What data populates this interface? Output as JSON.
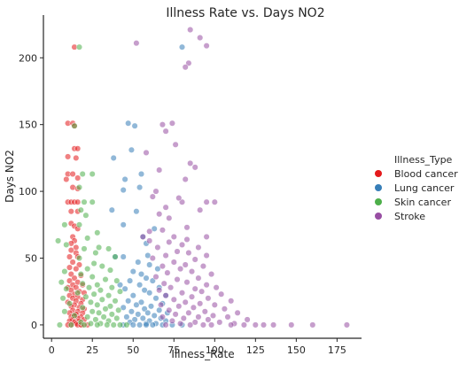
{
  "chart_data": {
    "type": "scatter",
    "title": "Illness Rate vs. Days NO2",
    "xlabel": "Illness_Rate",
    "ylabel": "Days NO2",
    "xlim": [
      -5,
      190
    ],
    "ylim": [
      -10,
      232
    ],
    "xticks": [
      0,
      25,
      50,
      75,
      100,
      125,
      150,
      175
    ],
    "yticks": [
      0,
      50,
      100,
      150,
      200
    ],
    "grid": false,
    "legend": {
      "title": "Illness_Type",
      "placement": "right"
    },
    "colors": {
      "Blood cancer": "#e41a1c",
      "Lung cancer": "#377eb8",
      "Skin cancer": "#4daf4a",
      "Stroke": "#984ea3"
    },
    "series": [
      {
        "name": "Blood cancer",
        "points": [
          [
            14,
            208
          ],
          [
            10,
            151
          ],
          [
            13,
            151
          ],
          [
            14,
            149
          ],
          [
            14,
            132
          ],
          [
            16,
            132
          ],
          [
            10,
            126
          ],
          [
            15,
            125
          ],
          [
            10,
            113
          ],
          [
            13,
            113
          ],
          [
            16,
            110
          ],
          [
            9,
            109
          ],
          [
            13,
            103
          ],
          [
            16,
            102
          ],
          [
            10,
            92
          ],
          [
            12,
            92
          ],
          [
            14,
            92
          ],
          [
            16,
            92
          ],
          [
            12,
            85
          ],
          [
            16,
            85
          ],
          [
            12,
            76
          ],
          [
            14,
            74
          ],
          [
            16,
            72
          ],
          [
            13,
            66
          ],
          [
            14,
            63
          ],
          [
            12,
            61
          ],
          [
            15,
            58
          ],
          [
            12,
            56
          ],
          [
            15,
            54
          ],
          [
            11,
            51
          ],
          [
            16,
            51
          ],
          [
            13,
            47
          ],
          [
            17,
            45
          ],
          [
            11,
            43
          ],
          [
            15,
            42
          ],
          [
            12,
            38
          ],
          [
            18,
            37
          ],
          [
            14,
            35
          ],
          [
            11,
            33
          ],
          [
            16,
            32
          ],
          [
            13,
            30
          ],
          [
            19,
            30
          ],
          [
            10,
            28
          ],
          [
            15,
            28
          ],
          [
            12,
            26
          ],
          [
            17,
            25
          ],
          [
            20,
            24
          ],
          [
            14,
            23
          ],
          [
            11,
            22
          ],
          [
            16,
            21
          ],
          [
            13,
            20
          ],
          [
            19,
            19
          ],
          [
            15,
            18
          ],
          [
            10,
            17
          ],
          [
            18,
            16
          ],
          [
            14,
            15
          ],
          [
            12,
            14
          ],
          [
            17,
            13
          ],
          [
            20,
            12
          ],
          [
            13,
            11
          ],
          [
            16,
            10
          ],
          [
            11,
            9
          ],
          [
            19,
            9
          ],
          [
            15,
            8
          ],
          [
            14,
            7
          ],
          [
            18,
            6
          ],
          [
            12,
            6
          ],
          [
            16,
            5
          ],
          [
            13,
            4
          ],
          [
            20,
            4
          ],
          [
            11,
            3
          ],
          [
            17,
            3
          ],
          [
            14,
            2
          ],
          [
            15,
            1
          ],
          [
            12,
            0
          ],
          [
            16,
            0
          ],
          [
            19,
            0
          ],
          [
            10,
            0
          ],
          [
            22,
            0
          ],
          [
            18,
            0
          ]
        ]
      },
      {
        "name": "Lung cancer",
        "points": [
          [
            80,
            208
          ],
          [
            47,
            151
          ],
          [
            51,
            149
          ],
          [
            38,
            125
          ],
          [
            49,
            131
          ],
          [
            45,
            109
          ],
          [
            55,
            113
          ],
          [
            54,
            103
          ],
          [
            44,
            101
          ],
          [
            37,
            86
          ],
          [
            52,
            85
          ],
          [
            44,
            75
          ],
          [
            63,
            72
          ],
          [
            56,
            66
          ],
          [
            58,
            61
          ],
          [
            44,
            51
          ],
          [
            39,
            51
          ],
          [
            59,
            52
          ],
          [
            53,
            47
          ],
          [
            60,
            45
          ],
          [
            65,
            42
          ],
          [
            50,
            40
          ],
          [
            55,
            38
          ],
          [
            58,
            35
          ],
          [
            48,
            33
          ],
          [
            62,
            33
          ],
          [
            42,
            30
          ],
          [
            54,
            30
          ],
          [
            66,
            28
          ],
          [
            45,
            27
          ],
          [
            57,
            26
          ],
          [
            60,
            24
          ],
          [
            50,
            22
          ],
          [
            70,
            22
          ],
          [
            64,
            20
          ],
          [
            47,
            18
          ],
          [
            55,
            17
          ],
          [
            68,
            16
          ],
          [
            52,
            15
          ],
          [
            61,
            14
          ],
          [
            44,
            13
          ],
          [
            57,
            12
          ],
          [
            66,
            11
          ],
          [
            49,
            10
          ],
          [
            59,
            9
          ],
          [
            71,
            9
          ],
          [
            53,
            8
          ],
          [
            63,
            7
          ],
          [
            46,
            6
          ],
          [
            56,
            5
          ],
          [
            67,
            5
          ],
          [
            51,
            4
          ],
          [
            60,
            3
          ],
          [
            70,
            3
          ],
          [
            48,
            2
          ],
          [
            58,
            1
          ],
          [
            64,
            1
          ],
          [
            54,
            0
          ],
          [
            62,
            0
          ],
          [
            68,
            0
          ],
          [
            44,
            0
          ],
          [
            74,
            0
          ],
          [
            80,
            0
          ],
          [
            50,
            0
          ],
          [
            58,
            0
          ]
        ]
      },
      {
        "name": "Skin cancer",
        "points": [
          [
            17,
            208
          ],
          [
            14,
            149
          ],
          [
            19,
            113
          ],
          [
            25,
            113
          ],
          [
            17,
            103
          ],
          [
            20,
            92
          ],
          [
            25,
            92
          ],
          [
            18,
            86
          ],
          [
            21,
            82
          ],
          [
            17,
            75
          ],
          [
            8,
            75
          ],
          [
            4,
            63
          ],
          [
            22,
            65
          ],
          [
            28,
            69
          ],
          [
            9,
            60
          ],
          [
            20,
            57
          ],
          [
            35,
            57
          ],
          [
            27,
            54
          ],
          [
            29,
            58
          ],
          [
            17,
            50
          ],
          [
            39,
            51
          ],
          [
            26,
            46
          ],
          [
            31,
            44
          ],
          [
            22,
            42
          ],
          [
            36,
            41
          ],
          [
            8,
            40
          ],
          [
            18,
            38
          ],
          [
            25,
            36
          ],
          [
            33,
            34
          ],
          [
            40,
            33
          ],
          [
            6,
            32
          ],
          [
            19,
            31
          ],
          [
            28,
            30
          ],
          [
            23,
            28
          ],
          [
            37,
            28
          ],
          [
            9,
            27
          ],
          [
            30,
            26
          ],
          [
            42,
            25
          ],
          [
            16,
            24
          ],
          [
            26,
            23
          ],
          [
            35,
            22
          ],
          [
            21,
            21
          ],
          [
            7,
            20
          ],
          [
            31,
            19
          ],
          [
            39,
            18
          ],
          [
            24,
            17
          ],
          [
            11,
            16
          ],
          [
            28,
            15
          ],
          [
            36,
            14
          ],
          [
            19,
            13
          ],
          [
            33,
            12
          ],
          [
            41,
            11
          ],
          [
            8,
            10
          ],
          [
            25,
            10
          ],
          [
            29,
            9
          ],
          [
            37,
            8
          ],
          [
            14,
            7
          ],
          [
            22,
            6
          ],
          [
            32,
            6
          ],
          [
            40,
            5
          ],
          [
            27,
            4
          ],
          [
            35,
            3
          ],
          [
            18,
            2
          ],
          [
            24,
            1
          ],
          [
            30,
            1
          ],
          [
            38,
            0
          ],
          [
            5,
            0
          ],
          [
            12,
            0
          ],
          [
            20,
            0
          ],
          [
            28,
            0
          ],
          [
            34,
            0
          ],
          [
            42,
            0
          ],
          [
            46,
            0
          ]
        ]
      },
      {
        "name": "Stroke",
        "points": [
          [
            85,
            221
          ],
          [
            91,
            215
          ],
          [
            95,
            209
          ],
          [
            52,
            211
          ],
          [
            84,
            196
          ],
          [
            82,
            193
          ],
          [
            74,
            151
          ],
          [
            68,
            150
          ],
          [
            70,
            145
          ],
          [
            76,
            135
          ],
          [
            58,
            129
          ],
          [
            66,
            116
          ],
          [
            85,
            121
          ],
          [
            88,
            118
          ],
          [
            82,
            109
          ],
          [
            80,
            92
          ],
          [
            78,
            95
          ],
          [
            64,
            100
          ],
          [
            62,
            96
          ],
          [
            95,
            92
          ],
          [
            100,
            92
          ],
          [
            70,
            88
          ],
          [
            91,
            86
          ],
          [
            66,
            83
          ],
          [
            72,
            80
          ],
          [
            60,
            70
          ],
          [
            68,
            71
          ],
          [
            83,
            73
          ],
          [
            83,
            64
          ],
          [
            75,
            66
          ],
          [
            56,
            66
          ],
          [
            95,
            66
          ],
          [
            60,
            63
          ],
          [
            72,
            62
          ],
          [
            80,
            60
          ],
          [
            65,
            58
          ],
          [
            90,
            58
          ],
          [
            77,
            55
          ],
          [
            84,
            54
          ],
          [
            70,
            52
          ],
          [
            95,
            52
          ],
          [
            62,
            50
          ],
          [
            88,
            49
          ],
          [
            75,
            47
          ],
          [
            82,
            45
          ],
          [
            68,
            44
          ],
          [
            93,
            44
          ],
          [
            79,
            42
          ],
          [
            86,
            40
          ],
          [
            71,
            39
          ],
          [
            98,
            38
          ],
          [
            64,
            36
          ],
          [
            90,
            35
          ],
          [
            77,
            34
          ],
          [
            83,
            32
          ],
          [
            69,
            31
          ],
          [
            95,
            30
          ],
          [
            101,
            28
          ],
          [
            73,
            28
          ],
          [
            88,
            27
          ],
          [
            66,
            26
          ],
          [
            92,
            25
          ],
          [
            80,
            24
          ],
          [
            104,
            23
          ],
          [
            70,
            22
          ],
          [
            86,
            21
          ],
          [
            96,
            20
          ],
          [
            75,
            19
          ],
          [
            110,
            18
          ],
          [
            82,
            17
          ],
          [
            91,
            16
          ],
          [
            67,
            15
          ],
          [
            100,
            15
          ],
          [
            78,
            14
          ],
          [
            87,
            13
          ],
          [
            106,
            12
          ],
          [
            72,
            11
          ],
          [
            94,
            10
          ],
          [
            84,
            9
          ],
          [
            114,
            9
          ],
          [
            76,
            8
          ],
          [
            99,
            7
          ],
          [
            68,
            6
          ],
          [
            90,
            6
          ],
          [
            108,
            6
          ],
          [
            81,
            5
          ],
          [
            96,
            4
          ],
          [
            120,
            4
          ],
          [
            74,
            3
          ],
          [
            88,
            2
          ],
          [
            103,
            2
          ],
          [
            79,
            1
          ],
          [
            112,
            1
          ],
          [
            70,
            0
          ],
          [
            85,
            0
          ],
          [
            98,
            0
          ],
          [
            110,
            0
          ],
          [
            118,
            0
          ],
          [
            125,
            0
          ],
          [
            136,
            0
          ],
          [
            147,
            0
          ],
          [
            160,
            0
          ],
          [
            181,
            0
          ],
          [
            93,
            0
          ],
          [
            130,
            0
          ]
        ]
      }
    ]
  }
}
